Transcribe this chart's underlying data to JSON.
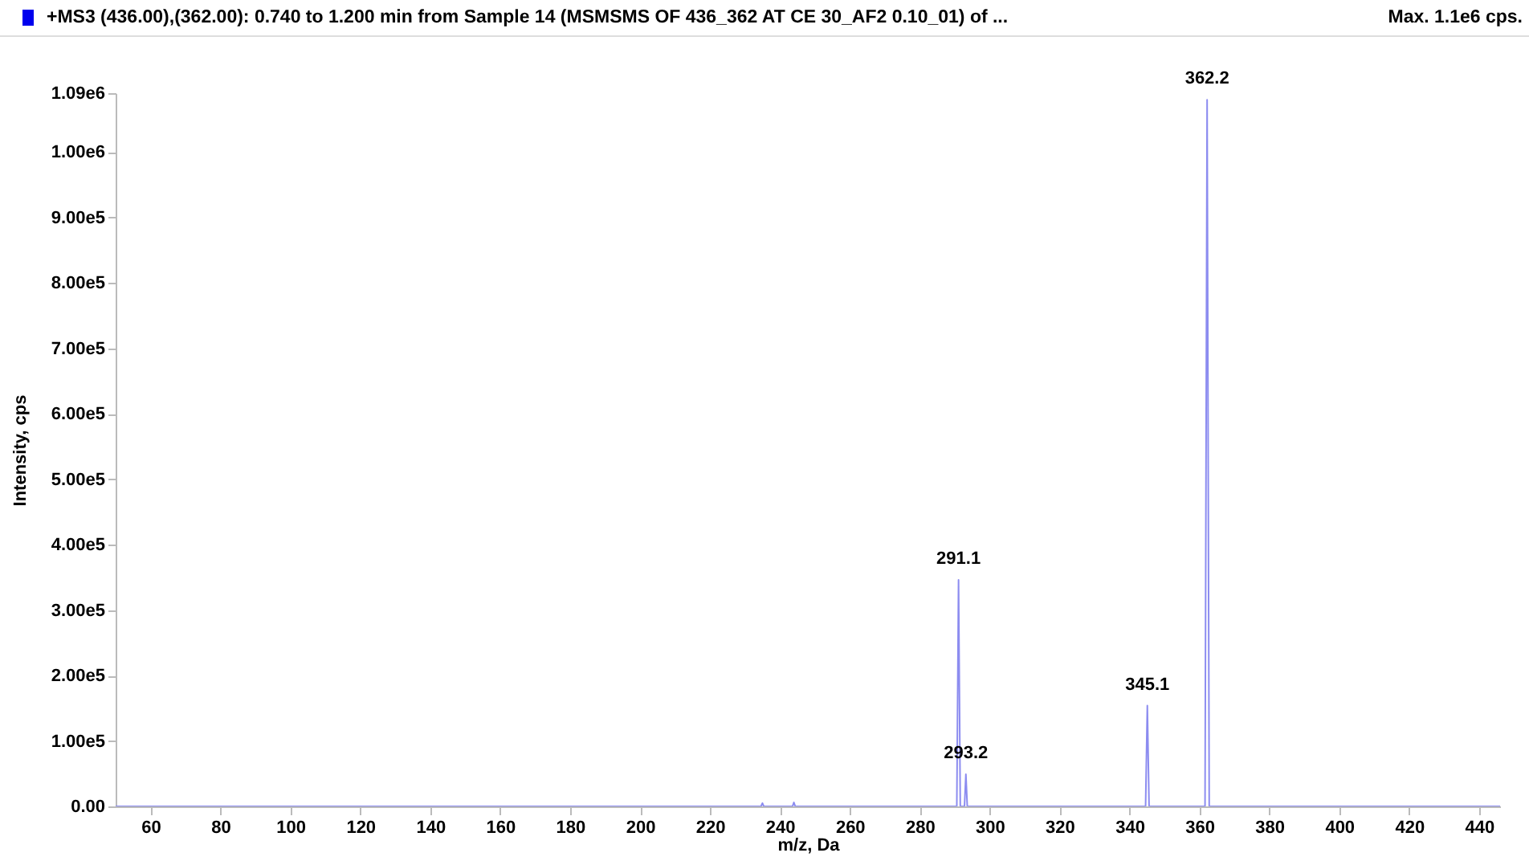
{
  "chart_data": {
    "type": "line",
    "title": "+MS3 (436.00),(362.00): 0.740 to 1.200 min from Sample 14 (MSMSMS OF 436_362 AT CE 30_AF2 0.10_01) of ...",
    "xlabel": "m/z, Da",
    "ylabel": "Intensity, cps",
    "annotations": [
      "Max. 1.1e6 cps.",
      {
        "text": "291.1",
        "x": 291.1,
        "y": 346000
      },
      {
        "text": "293.2",
        "x": 293.2,
        "y": 49000
      },
      {
        "text": "345.1",
        "x": 345.1,
        "y": 154000
      },
      {
        "text": "362.2",
        "x": 362.2,
        "y": 1080000
      }
    ],
    "xlim": [
      50,
      446
    ],
    "xticks": [
      60,
      80,
      100,
      120,
      140,
      160,
      180,
      200,
      220,
      240,
      260,
      280,
      300,
      320,
      340,
      360,
      380,
      400,
      420,
      440
    ],
    "ylim": [
      0,
      1090000
    ],
    "yticks": [
      {
        "value": 0,
        "label": "0.00"
      },
      {
        "value": 100000,
        "label": "1.00e5"
      },
      {
        "value": 200000,
        "label": "2.00e5"
      },
      {
        "value": 300000,
        "label": "3.00e5"
      },
      {
        "value": 400000,
        "label": "4.00e5"
      },
      {
        "value": 500000,
        "label": "5.00e5"
      },
      {
        "value": 600000,
        "label": "6.00e5"
      },
      {
        "value": 700000,
        "label": "7.00e5"
      },
      {
        "value": 800000,
        "label": "8.00e5"
      },
      {
        "value": 900000,
        "label": "9.00e5"
      },
      {
        "value": 1000000,
        "label": "1.00e6"
      },
      {
        "value": 1090000,
        "label": "1.09e6"
      }
    ],
    "grid": false,
    "series": [
      {
        "color": "#8c8cf0",
        "x": [
          50,
          234.6,
          235,
          235.4,
          243.6,
          244,
          244.4,
          290.6,
          291.1,
          291.6,
          292.8,
          293.2,
          293.6,
          344.6,
          345.1,
          345.6,
          361.6,
          362.2,
          362.8,
          446
        ],
        "values": [
          0,
          0,
          5000,
          0,
          0,
          6000,
          0,
          0,
          346000,
          0,
          0,
          49000,
          0,
          0,
          154000,
          0,
          0,
          1080000,
          0,
          0
        ]
      }
    ]
  }
}
